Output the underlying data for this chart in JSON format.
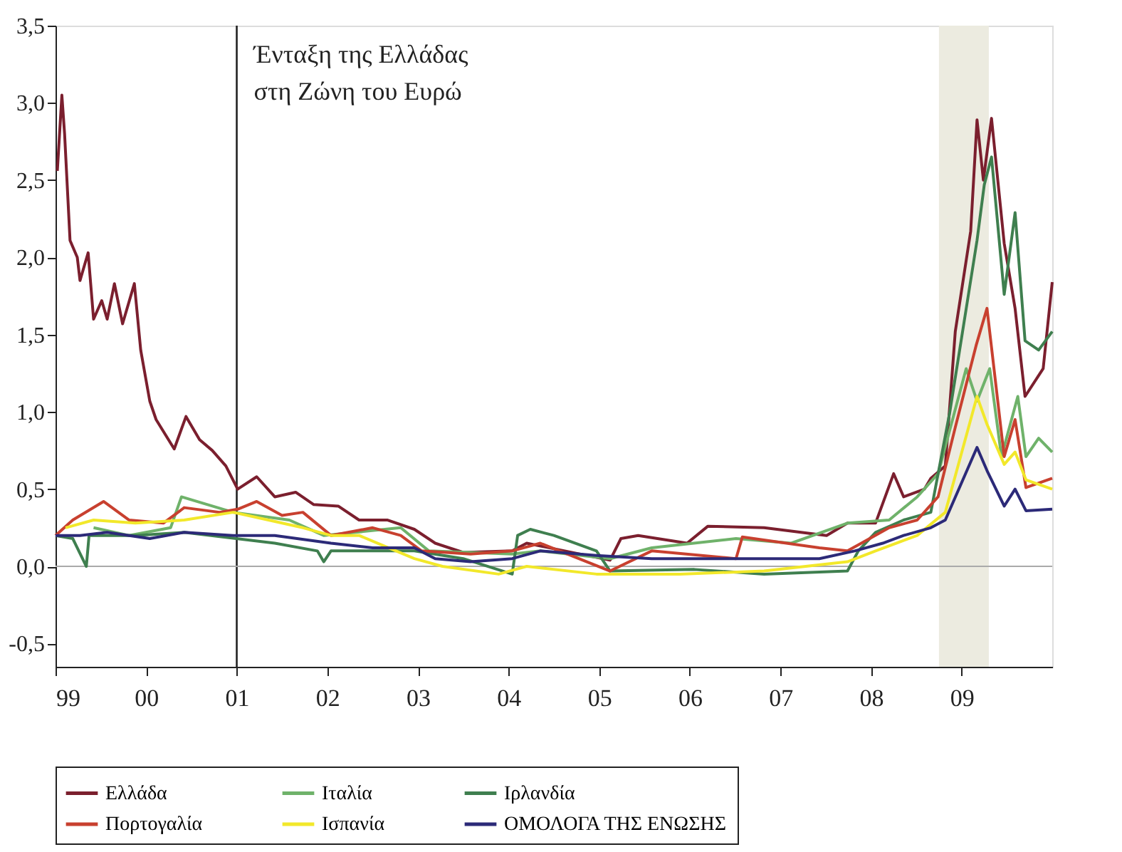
{
  "chart_data": {
    "type": "line",
    "legend": "bottom",
    "grid": false,
    "line_style": "solid",
    "marker": "none",
    "xlim": [
      1999.0,
      2010.0
    ],
    "ylim": [
      -0.65,
      3.5
    ],
    "xticks": [
      {
        "value": 1999,
        "label": "99"
      },
      {
        "value": 2000,
        "label": "00"
      },
      {
        "value": 2001,
        "label": "01"
      },
      {
        "value": 2002,
        "label": "02"
      },
      {
        "value": 2003,
        "label": "03"
      },
      {
        "value": 2004,
        "label": "04"
      },
      {
        "value": 2005,
        "label": "05"
      },
      {
        "value": 2006,
        "label": "06"
      },
      {
        "value": 2007,
        "label": "07"
      },
      {
        "value": 2008,
        "label": "08"
      },
      {
        "value": 2009,
        "label": "09"
      }
    ],
    "yticks": [
      {
        "value": -0.5,
        "label": "-0,5"
      },
      {
        "value": 0,
        "label": "0,0"
      },
      {
        "value": 0.5,
        "label": "0,5"
      },
      {
        "value": 1.0,
        "label": "1,0"
      },
      {
        "value": 1.5,
        "label": "1,5"
      },
      {
        "value": 2.0,
        "label": "2,0"
      },
      {
        "value": 2.5,
        "label": "2,5"
      },
      {
        "value": 3.0,
        "label": "3,0"
      },
      {
        "value": 3.5,
        "label": "3,5"
      }
    ],
    "ref_lines": [
      {
        "axis": "x",
        "value": 2001.0,
        "label": "Ένταξη της Ελλάδας\nστη Ζώνη του Ευρώ",
        "color": "#222222"
      },
      {
        "axis": "y",
        "value": 0,
        "label": null,
        "color": "#aaaaaa"
      }
    ],
    "bands": [
      {
        "axis": "x",
        "from": 2008.75,
        "to": 2009.3,
        "label": null,
        "color": "#ecebe0"
      }
    ],
    "series": [
      {
        "name": "Ελλάδα",
        "color": "#7b1f2e",
        "x": [
          1999.02,
          1999.07,
          1999.1,
          1999.16,
          1999.24,
          1999.27,
          1999.36,
          1999.42,
          1999.51,
          1999.57,
          1999.65,
          1999.74,
          1999.87,
          1999.94,
          2000.04,
          2000.11,
          2000.31,
          2000.44,
          2000.59,
          2000.73,
          2000.88,
          2001.01,
          2001.22,
          2001.42,
          2001.65,
          2001.85,
          2002.12,
          2002.35,
          2002.66,
          2002.96,
          2003.19,
          2003.5,
          2004.04,
          2004.2,
          2005.12,
          2005.24,
          2005.43,
          2005.97,
          2006.2,
          2006.82,
          2007.51,
          2007.74,
          2008.05,
          2008.25,
          2008.36,
          2008.59,
          2008.66,
          2008.82,
          2008.93,
          2009.1,
          2009.17,
          2009.24,
          2009.33,
          2009.47,
          2009.59,
          2009.7,
          2009.9,
          2010.0
        ],
        "values": [
          2.56,
          3.05,
          2.8,
          2.11,
          2.0,
          1.85,
          2.03,
          1.6,
          1.72,
          1.6,
          1.83,
          1.57,
          1.83,
          1.4,
          1.07,
          0.95,
          0.76,
          0.97,
          0.82,
          0.75,
          0.65,
          0.5,
          0.58,
          0.45,
          0.48,
          0.4,
          0.39,
          0.3,
          0.3,
          0.24,
          0.15,
          0.09,
          0.1,
          0.15,
          0.04,
          0.18,
          0.2,
          0.15,
          0.26,
          0.25,
          0.2,
          0.28,
          0.28,
          0.6,
          0.45,
          0.5,
          0.57,
          0.65,
          1.52,
          2.17,
          2.89,
          2.5,
          2.9,
          2.09,
          1.67,
          1.1,
          1.28,
          1.84
        ]
      },
      {
        "name": "Ιταλία",
        "color": "#6fb26a",
        "x": [
          1999.42,
          1999.81,
          2000.27,
          2000.39,
          2000.96,
          2001.58,
          2001.96,
          2002.81,
          2003.12,
          2004.04,
          2004.35,
          2005.12,
          2005.58,
          2006.51,
          2007.12,
          2007.74,
          2008.2,
          2008.51,
          2008.74,
          2009.05,
          2009.17,
          2009.31,
          2009.44,
          2009.62,
          2009.71,
          2009.85,
          2010.0
        ],
        "values": [
          0.25,
          0.2,
          0.25,
          0.45,
          0.35,
          0.3,
          0.2,
          0.25,
          0.1,
          0.08,
          0.1,
          0.05,
          0.12,
          0.18,
          0.15,
          0.28,
          0.3,
          0.45,
          0.6,
          1.28,
          1.07,
          1.28,
          0.71,
          1.1,
          0.71,
          0.83,
          0.74
        ]
      },
      {
        "name": "Ιρλανδία",
        "color": "#3f7f4f",
        "x": [
          1999.0,
          1999.19,
          1999.34,
          1999.37,
          1999.88,
          2000.42,
          2001.42,
          2001.89,
          2001.96,
          2002.04,
          2002.96,
          2003.5,
          2004.04,
          2004.1,
          2004.24,
          2004.5,
          2004.97,
          2005.12,
          2006.05,
          2006.82,
          2007.74,
          2007.86,
          2008.05,
          2008.36,
          2008.66,
          2008.87,
          2009.17,
          2009.25,
          2009.33,
          2009.47,
          2009.59,
          2009.7,
          2009.85,
          2010.0
        ],
        "values": [
          0.2,
          0.18,
          0.0,
          0.2,
          0.2,
          0.22,
          0.15,
          0.1,
          0.03,
          0.1,
          0.1,
          0.05,
          -0.05,
          0.2,
          0.24,
          0.2,
          0.1,
          -0.03,
          -0.02,
          -0.05,
          -0.03,
          0.1,
          0.22,
          0.3,
          0.35,
          1.0,
          2.11,
          2.47,
          2.65,
          1.76,
          2.29,
          1.46,
          1.4,
          1.52
        ]
      },
      {
        "name": "Πορτογαλία",
        "color": "#c8402f",
        "x": [
          1999.0,
          1999.19,
          1999.53,
          1999.81,
          2000.19,
          2000.42,
          2000.81,
          2001.01,
          2001.22,
          2001.5,
          2001.73,
          2002.04,
          2002.5,
          2002.81,
          2003.04,
          2003.58,
          2004.04,
          2004.35,
          2005.12,
          2005.58,
          2006.51,
          2006.58,
          2007.43,
          2007.74,
          2008.2,
          2008.51,
          2008.74,
          2008.93,
          2009.16,
          2009.28,
          2009.47,
          2009.59,
          2009.71,
          2010.0
        ],
        "values": [
          0.2,
          0.3,
          0.42,
          0.3,
          0.28,
          0.38,
          0.35,
          0.37,
          0.42,
          0.33,
          0.35,
          0.2,
          0.25,
          0.2,
          0.1,
          0.08,
          0.1,
          0.15,
          -0.03,
          0.1,
          0.05,
          0.19,
          0.12,
          0.1,
          0.25,
          0.3,
          0.45,
          0.9,
          1.43,
          1.67,
          0.71,
          0.95,
          0.51,
          0.57
        ]
      },
      {
        "name": "Ισπανία",
        "color": "#f2e82a",
        "x": [
          1999.11,
          1999.42,
          1999.88,
          2000.42,
          2000.96,
          2001.35,
          2001.73,
          2002.04,
          2002.35,
          2002.96,
          2003.27,
          2003.89,
          2004.2,
          2004.97,
          2005.89,
          2006.82,
          2007.74,
          2008.05,
          2008.51,
          2008.82,
          2009.17,
          2009.28,
          2009.47,
          2009.59,
          2009.71,
          2010.0
        ],
        "values": [
          0.25,
          0.3,
          0.28,
          0.3,
          0.35,
          0.3,
          0.25,
          0.2,
          0.2,
          0.05,
          0.0,
          -0.05,
          0.0,
          -0.05,
          -0.05,
          -0.03,
          0.03,
          0.1,
          0.2,
          0.35,
          1.1,
          0.92,
          0.66,
          0.74,
          0.56,
          0.5
        ]
      },
      {
        "name": "ΟΜΟΛΟΓΑ ΤΗΣ ΕΝΩΣΗΣ",
        "color": "#2c2a78",
        "x": [
          1999.0,
          1999.27,
          1999.57,
          2000.04,
          2000.42,
          2000.96,
          2001.42,
          2002.04,
          2002.5,
          2002.96,
          2003.19,
          2003.58,
          2004.04,
          2004.35,
          2004.97,
          2005.58,
          2006.51,
          2007.43,
          2007.82,
          2008.13,
          2008.36,
          2008.66,
          2008.82,
          2009.17,
          2009.28,
          2009.47,
          2009.59,
          2009.71,
          2010.0
        ],
        "values": [
          0.2,
          0.2,
          0.22,
          0.18,
          0.22,
          0.2,
          0.2,
          0.15,
          0.12,
          0.12,
          0.05,
          0.03,
          0.05,
          0.1,
          0.07,
          0.05,
          0.05,
          0.05,
          0.1,
          0.15,
          0.2,
          0.25,
          0.3,
          0.77,
          0.62,
          0.39,
          0.5,
          0.36,
          0.37
        ]
      }
    ]
  }
}
